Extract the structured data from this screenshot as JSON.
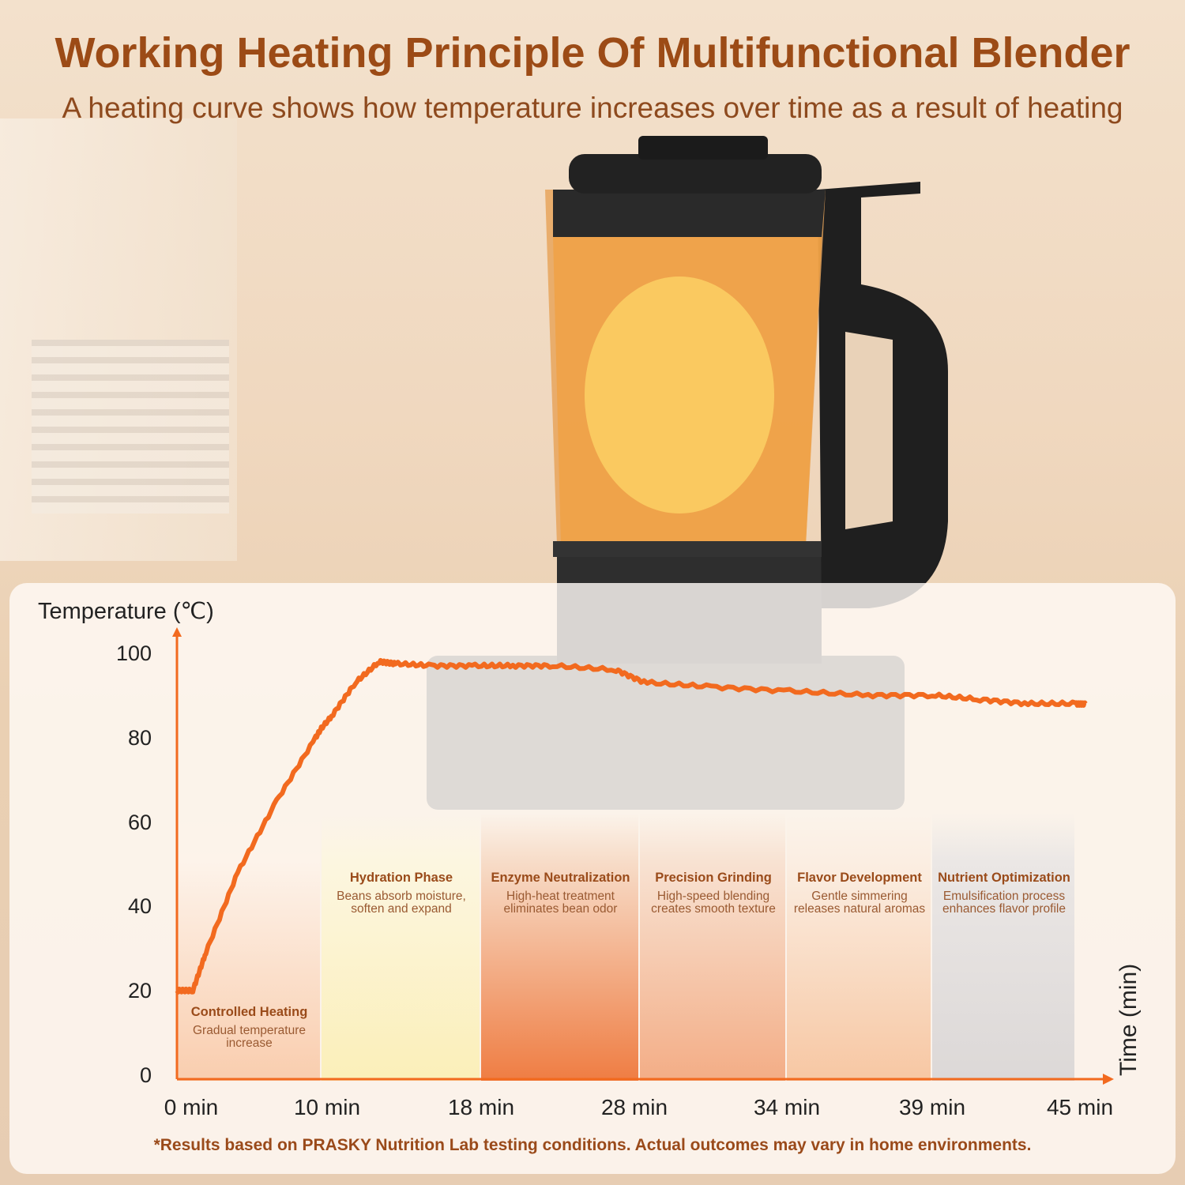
{
  "header": {
    "title": "Working Heating Principle Of Multifunctional Blender",
    "subtitle": "A heating curve shows how temperature increases over time as a result of heating"
  },
  "footnote": "*Results based on PRASKY Nutrition Lab testing conditions. Actual outcomes may vary in home environments.",
  "colors": {
    "curve": "#f26a1f",
    "title": "#9c4b16",
    "axis": "#f26a1f"
  },
  "chart_data": {
    "type": "line",
    "ylabel": "Temperature (℃)",
    "xlabel": "Time (min)",
    "ylim": [
      0,
      100
    ],
    "yticks": [
      "0",
      "20",
      "40",
      "60",
      "80",
      "100"
    ],
    "xticks": [
      "0 min",
      "10 min",
      "18 min",
      "28 min",
      "34 min",
      "39 min",
      "45 min"
    ],
    "xtick_values": [
      0,
      10,
      18,
      28,
      34,
      39,
      45
    ],
    "grid": false,
    "series": [
      {
        "x": [
          0,
          1.1,
          2.0,
          4.2,
          6.9,
          9.6,
          10.5,
          11.7,
          12.9,
          13.7,
          15.5,
          17.7,
          20,
          22.5,
          26.5,
          28.3,
          30.9,
          34.1,
          36.8,
          39,
          41,
          43,
          45,
          45.4
        ],
        "y": [
          21,
          21,
          30,
          49,
          66,
          81,
          86,
          94,
          99,
          98.5,
          98,
          98,
          98,
          98,
          97,
          94,
          93,
          92,
          91,
          91,
          90,
          89,
          89,
          89
        ]
      }
    ],
    "phases": [
      {
        "title": "Controlled Heating",
        "desc": [
          "Gradual temperature",
          "increase"
        ],
        "color_top": "#fdf3ea",
        "color_bottom": "#f9cdae"
      },
      {
        "title": "Hydration Phase",
        "desc": [
          "Beans absorb moisture,",
          "soften and expand"
        ],
        "color_top": "#fcf6e0",
        "color_bottom": "#fbefb9"
      },
      {
        "title": "Enzyme Neutralization",
        "desc": [
          "High-heat treatment",
          "eliminates bean odor"
        ],
        "color_top": "#f7dcc8",
        "color_bottom": "#ef7d43"
      },
      {
        "title": "Precision Grinding",
        "desc": [
          "High-speed blending",
          "creates smooth texture"
        ],
        "color_top": "#f8e2d2",
        "color_bottom": "#f3ad86"
      },
      {
        "title": "Flavor Development",
        "desc": [
          "Gentle simmering",
          "releases natural aromas"
        ],
        "color_top": "#fbeee2",
        "color_bottom": "#f7c7a3"
      },
      {
        "title": "Nutrient Optimization",
        "desc": [
          "Emulsification process",
          "enhances flavor profile"
        ],
        "color_top": "#ebe7e5",
        "color_bottom": "#dcd8d7"
      }
    ]
  }
}
